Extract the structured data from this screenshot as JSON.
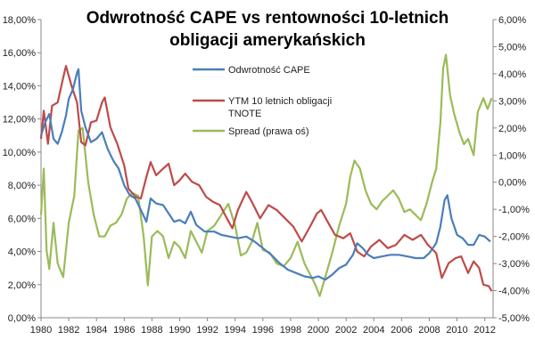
{
  "chart_data": {
    "type": "line",
    "title_lines": [
      "Odwrotność CAPE vs rentowności 10-letnich",
      "obligacji amerykańskich"
    ],
    "xlabel": "",
    "ylabel": "",
    "xlim": [
      1980,
      2012.6
    ],
    "ylim_left": [
      0,
      18
    ],
    "ylim_right": [
      -5,
      6
    ],
    "x_ticks": [
      {
        "value": 1980,
        "label": "1980"
      },
      {
        "value": 1982,
        "label": "1982"
      },
      {
        "value": 1984,
        "label": "1984"
      },
      {
        "value": 1986,
        "label": "1986"
      },
      {
        "value": 1988,
        "label": "1988"
      },
      {
        "value": 1990,
        "label": "1990"
      },
      {
        "value": 1992,
        "label": "1992"
      },
      {
        "value": 1994,
        "label": "1994"
      },
      {
        "value": 1996,
        "label": "1996"
      },
      {
        "value": 1998,
        "label": "1998"
      },
      {
        "value": 2000,
        "label": "2000"
      },
      {
        "value": 2002,
        "label": "2002"
      },
      {
        "value": 2004,
        "label": "2004"
      },
      {
        "value": 2006,
        "label": "2006"
      },
      {
        "value": 2008,
        "label": "2008"
      },
      {
        "value": 2010,
        "label": "2010"
      },
      {
        "value": 2012,
        "label": "2012"
      }
    ],
    "left_ticks": [
      {
        "value": 0,
        "label": "0,00%"
      },
      {
        "value": 2,
        "label": "2,00%"
      },
      {
        "value": 4,
        "label": "4,00%"
      },
      {
        "value": 6,
        "label": "6,00%"
      },
      {
        "value": 8,
        "label": "8,00%"
      },
      {
        "value": 10,
        "label": "10,00%"
      },
      {
        "value": 12,
        "label": "12,00%"
      },
      {
        "value": 14,
        "label": "14,00%"
      },
      {
        "value": 16,
        "label": "16,00%"
      },
      {
        "value": 18,
        "label": "18,00%"
      }
    ],
    "right_ticks": [
      {
        "value": -5,
        "label": "-5,00%"
      },
      {
        "value": -4,
        "label": "-4,00%"
      },
      {
        "value": -3,
        "label": "-3,00%"
      },
      {
        "value": -2,
        "label": "-2,00%"
      },
      {
        "value": -1,
        "label": "-1,00%"
      },
      {
        "value": 0,
        "label": "0,00%"
      },
      {
        "value": 1,
        "label": "1,00%"
      },
      {
        "value": 2,
        "label": "2,00%"
      },
      {
        "value": 3,
        "label": "3,00%"
      },
      {
        "value": 4,
        "label": "4,00%"
      },
      {
        "value": 5,
        "label": "5,00%"
      },
      {
        "value": 6,
        "label": "6,00%"
      }
    ],
    "grid": false,
    "legend_position": "top-center",
    "series": [
      {
        "name": "Odwrotność CAPE",
        "legend_lines": [
          "Odwrotność CAPE"
        ],
        "axis": "left",
        "color": "#4a7ebb",
        "points": [
          [
            1980.0,
            11.0
          ],
          [
            1980.3,
            11.8
          ],
          [
            1980.6,
            12.3
          ],
          [
            1980.9,
            10.8
          ],
          [
            1981.2,
            10.5
          ],
          [
            1981.5,
            11.2
          ],
          [
            1981.8,
            12.2
          ],
          [
            1982.0,
            13.2
          ],
          [
            1982.3,
            13.8
          ],
          [
            1982.6,
            14.8
          ],
          [
            1982.7,
            15.0
          ],
          [
            1982.9,
            12.5
          ],
          [
            1983.2,
            11.5
          ],
          [
            1983.6,
            10.6
          ],
          [
            1984.0,
            10.8
          ],
          [
            1984.4,
            11.2
          ],
          [
            1984.8,
            10.2
          ],
          [
            1985.2,
            9.5
          ],
          [
            1985.6,
            9.0
          ],
          [
            1986.0,
            8.0
          ],
          [
            1986.4,
            7.4
          ],
          [
            1986.8,
            7.2
          ],
          [
            1987.2,
            6.5
          ],
          [
            1987.6,
            5.8
          ],
          [
            1987.9,
            7.2
          ],
          [
            1988.3,
            6.9
          ],
          [
            1988.8,
            6.8
          ],
          [
            1989.2,
            6.3
          ],
          [
            1989.6,
            5.8
          ],
          [
            1990.0,
            5.9
          ],
          [
            1990.4,
            5.7
          ],
          [
            1990.8,
            6.4
          ],
          [
            1991.2,
            5.6
          ],
          [
            1991.8,
            5.2
          ],
          [
            1992.5,
            5.2
          ],
          [
            1993.0,
            5.0
          ],
          [
            1993.6,
            4.9
          ],
          [
            1994.2,
            4.8
          ],
          [
            1994.8,
            4.9
          ],
          [
            1995.4,
            4.6
          ],
          [
            1996.0,
            4.2
          ],
          [
            1996.6,
            3.8
          ],
          [
            1997.2,
            3.3
          ],
          [
            1997.8,
            2.9
          ],
          [
            1998.4,
            2.7
          ],
          [
            1999.0,
            2.5
          ],
          [
            1999.6,
            2.4
          ],
          [
            2000.0,
            2.5
          ],
          [
            2000.5,
            2.3
          ],
          [
            2001.0,
            2.6
          ],
          [
            2001.5,
            3.0
          ],
          [
            2002.0,
            3.2
          ],
          [
            2002.5,
            3.8
          ],
          [
            2002.8,
            4.5
          ],
          [
            2003.2,
            4.2
          ],
          [
            2003.6,
            3.8
          ],
          [
            2004.0,
            3.6
          ],
          [
            2004.6,
            3.7
          ],
          [
            2005.2,
            3.8
          ],
          [
            2005.8,
            3.8
          ],
          [
            2006.4,
            3.7
          ],
          [
            2007.0,
            3.6
          ],
          [
            2007.6,
            3.6
          ],
          [
            2008.0,
            3.9
          ],
          [
            2008.5,
            4.5
          ],
          [
            2008.8,
            5.5
          ],
          [
            2009.1,
            7.1
          ],
          [
            2009.3,
            7.4
          ],
          [
            2009.6,
            6.0
          ],
          [
            2010.0,
            5.0
          ],
          [
            2010.4,
            4.8
          ],
          [
            2010.8,
            4.4
          ],
          [
            2011.2,
            4.4
          ],
          [
            2011.6,
            5.0
          ],
          [
            2012.0,
            4.9
          ],
          [
            2012.4,
            4.6
          ]
        ]
      },
      {
        "name": "YTM 10 letnich obligacji TNOTE",
        "legend_lines": [
          "YTM 10 letnich obligacji",
          "TNOTE"
        ],
        "axis": "left",
        "color": "#be4b48",
        "points": [
          [
            1980.0,
            10.8
          ],
          [
            1980.2,
            12.5
          ],
          [
            1980.5,
            10.5
          ],
          [
            1980.8,
            12.8
          ],
          [
            1981.2,
            13.0
          ],
          [
            1981.6,
            14.5
          ],
          [
            1981.8,
            15.2
          ],
          [
            1982.2,
            14.0
          ],
          [
            1982.6,
            13.0
          ],
          [
            1982.9,
            10.6
          ],
          [
            1983.2,
            10.4
          ],
          [
            1983.6,
            11.8
          ],
          [
            1984.0,
            11.9
          ],
          [
            1984.4,
            13.0
          ],
          [
            1984.6,
            13.3
          ],
          [
            1985.0,
            11.5
          ],
          [
            1985.5,
            10.5
          ],
          [
            1986.0,
            9.2
          ],
          [
            1986.3,
            7.8
          ],
          [
            1986.8,
            7.3
          ],
          [
            1987.2,
            7.2
          ],
          [
            1987.6,
            8.5
          ],
          [
            1987.9,
            9.4
          ],
          [
            1988.3,
            8.6
          ],
          [
            1988.8,
            9.0
          ],
          [
            1989.2,
            9.3
          ],
          [
            1989.6,
            8.0
          ],
          [
            1990.0,
            8.3
          ],
          [
            1990.4,
            8.7
          ],
          [
            1990.9,
            8.2
          ],
          [
            1991.4,
            8.0
          ],
          [
            1991.9,
            7.3
          ],
          [
            1992.4,
            7.0
          ],
          [
            1992.9,
            6.8
          ],
          [
            1993.4,
            6.0
          ],
          [
            1993.8,
            5.4
          ],
          [
            1994.2,
            6.5
          ],
          [
            1994.8,
            7.6
          ],
          [
            1995.2,
            7.0
          ],
          [
            1995.8,
            6.0
          ],
          [
            1996.4,
            6.8
          ],
          [
            1997.0,
            6.5
          ],
          [
            1997.6,
            6.0
          ],
          [
            1998.2,
            5.5
          ],
          [
            1998.8,
            4.6
          ],
          [
            1999.4,
            5.5
          ],
          [
            1999.9,
            6.3
          ],
          [
            2000.2,
            6.5
          ],
          [
            2000.8,
            5.6
          ],
          [
            2001.2,
            5.0
          ],
          [
            2001.8,
            4.8
          ],
          [
            2002.3,
            5.1
          ],
          [
            2002.8,
            4.0
          ],
          [
            2003.3,
            3.7
          ],
          [
            2003.8,
            4.3
          ],
          [
            2004.4,
            4.7
          ],
          [
            2005.0,
            4.2
          ],
          [
            2005.6,
            4.4
          ],
          [
            2006.2,
            5.0
          ],
          [
            2006.8,
            4.7
          ],
          [
            2007.4,
            5.0
          ],
          [
            2007.9,
            4.4
          ],
          [
            2008.5,
            3.9
          ],
          [
            2008.9,
            2.4
          ],
          [
            2009.4,
            3.3
          ],
          [
            2009.9,
            3.6
          ],
          [
            2010.3,
            3.7
          ],
          [
            2010.8,
            2.7
          ],
          [
            2011.2,
            3.4
          ],
          [
            2011.6,
            3.0
          ],
          [
            2011.9,
            2.0
          ],
          [
            2012.3,
            1.9
          ],
          [
            2012.5,
            1.6
          ]
        ]
      },
      {
        "name": "Spread (prawa oś)",
        "legend_lines": [
          "Spread (prawa oś)"
        ],
        "axis": "right",
        "color": "#9bbb59",
        "points": [
          [
            1980.0,
            -1.2
          ],
          [
            1980.2,
            0.5
          ],
          [
            1980.4,
            -2.5
          ],
          [
            1980.6,
            -3.2
          ],
          [
            1980.9,
            -1.5
          ],
          [
            1981.2,
            -3.0
          ],
          [
            1981.6,
            -3.5
          ],
          [
            1982.0,
            -1.5
          ],
          [
            1982.4,
            -0.5
          ],
          [
            1982.7,
            1.9
          ],
          [
            1983.0,
            2.0
          ],
          [
            1983.4,
            0.0
          ],
          [
            1983.8,
            -1.2
          ],
          [
            1984.2,
            -2.0
          ],
          [
            1984.6,
            -2.0
          ],
          [
            1985.0,
            -1.6
          ],
          [
            1985.4,
            -1.5
          ],
          [
            1985.8,
            -1.2
          ],
          [
            1986.2,
            -0.6
          ],
          [
            1986.6,
            -0.4
          ],
          [
            1987.0,
            -0.5
          ],
          [
            1987.4,
            -2.0
          ],
          [
            1987.7,
            -3.8
          ],
          [
            1988.0,
            -2.0
          ],
          [
            1988.4,
            -1.8
          ],
          [
            1988.8,
            -2.0
          ],
          [
            1989.2,
            -2.8
          ],
          [
            1989.6,
            -2.2
          ],
          [
            1990.0,
            -2.4
          ],
          [
            1990.4,
            -2.8
          ],
          [
            1990.8,
            -1.8
          ],
          [
            1991.2,
            -2.2
          ],
          [
            1991.6,
            -2.6
          ],
          [
            1992.0,
            -1.8
          ],
          [
            1992.5,
            -1.6
          ],
          [
            1993.0,
            -1.2
          ],
          [
            1993.5,
            -0.8
          ],
          [
            1994.0,
            -1.6
          ],
          [
            1994.4,
            -2.7
          ],
          [
            1994.8,
            -2.6
          ],
          [
            1995.2,
            -2.2
          ],
          [
            1995.6,
            -1.5
          ],
          [
            1996.0,
            -2.5
          ],
          [
            1996.5,
            -2.6
          ],
          [
            1997.0,
            -3.0
          ],
          [
            1997.5,
            -3.1
          ],
          [
            1998.0,
            -2.8
          ],
          [
            1998.5,
            -2.2
          ],
          [
            1999.0,
            -3.0
          ],
          [
            1999.5,
            -3.5
          ],
          [
            1999.8,
            -3.8
          ],
          [
            2000.1,
            -4.2
          ],
          [
            2000.5,
            -3.5
          ],
          [
            2001.0,
            -2.6
          ],
          [
            2001.5,
            -1.6
          ],
          [
            2002.0,
            -0.8
          ],
          [
            2002.3,
            0.2
          ],
          [
            2002.6,
            0.8
          ],
          [
            2003.0,
            0.5
          ],
          [
            2003.4,
            -0.3
          ],
          [
            2003.8,
            -0.8
          ],
          [
            2004.2,
            -1.0
          ],
          [
            2004.6,
            -0.7
          ],
          [
            2005.0,
            -0.5
          ],
          [
            2005.4,
            -0.3
          ],
          [
            2005.8,
            -0.6
          ],
          [
            2006.2,
            -1.1
          ],
          [
            2006.6,
            -1.0
          ],
          [
            2007.0,
            -1.2
          ],
          [
            2007.4,
            -1.4
          ],
          [
            2007.8,
            -0.8
          ],
          [
            2008.2,
            0.0
          ],
          [
            2008.5,
            0.5
          ],
          [
            2008.8,
            2.2
          ],
          [
            2009.0,
            4.2
          ],
          [
            2009.2,
            4.7
          ],
          [
            2009.5,
            3.2
          ],
          [
            2009.8,
            2.5
          ],
          [
            2010.2,
            1.8
          ],
          [
            2010.5,
            1.4
          ],
          [
            2010.8,
            1.6
          ],
          [
            2011.2,
            1.0
          ],
          [
            2011.5,
            2.6
          ],
          [
            2011.9,
            3.1
          ],
          [
            2012.2,
            2.7
          ],
          [
            2012.5,
            3.1
          ]
        ]
      }
    ]
  }
}
